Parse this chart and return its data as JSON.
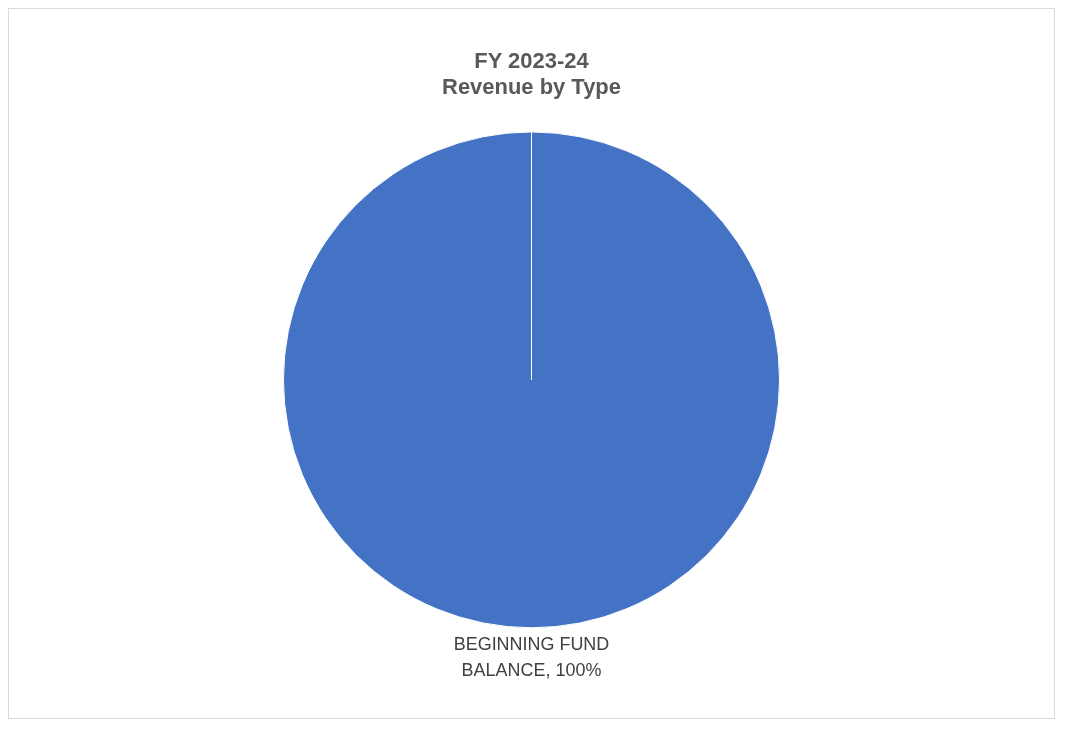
{
  "chart_data": {
    "type": "pie",
    "title": "FY 2023-24\nRevenue by Type",
    "categories": [
      "BEGINNING FUND BALANCE"
    ],
    "values": [
      100
    ],
    "value_labels": [
      ", 100%"
    ],
    "colors": [
      "#4472c4"
    ],
    "legend": false
  }
}
